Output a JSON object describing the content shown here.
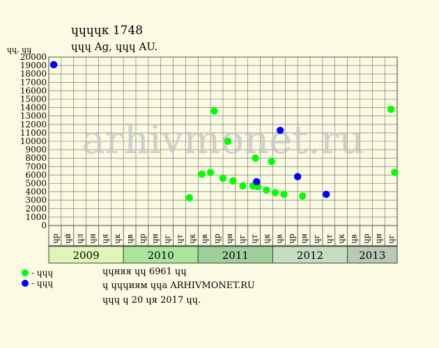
{
  "title": "ɥɥɥɥк 1748",
  "subtitle": "ɥɥɥ Ag, ɥɥɥ AU.",
  "watermark": "arhivmonet.ru",
  "chart_data": {
    "type": "scatter",
    "ylabel": "ɥɥ, ɥɥ",
    "ylim": [
      0,
      20000
    ],
    "yticks": [
      0,
      1000,
      2000,
      3000,
      4000,
      5000,
      6000,
      7000,
      8000,
      9000,
      10000,
      11000,
      12000,
      13000,
      14000,
      15000,
      16000,
      17000,
      18000,
      19000,
      20000
    ],
    "grid": true,
    "months": [
      "ɥр",
      "ɥй",
      "ɥл",
      "ɥн",
      "ɥя",
      "ɥк",
      "ɥв",
      "ɥр",
      "ɥн",
      "ɥг",
      "ɥт",
      "ɥк",
      "ɥв",
      "ɥр",
      "ɥн",
      "ɥг",
      "ɥт",
      "ɥк",
      "ɥв",
      "ɥр",
      "ɥн",
      "ɥг",
      "ɥт",
      "ɥк",
      "ɥв",
      "ɥр",
      "ɥн",
      "ɥг"
    ],
    "years": [
      {
        "label": "2009",
        "start": 0,
        "end": 6,
        "color": "#e0f5b8"
      },
      {
        "label": "2010",
        "start": 6,
        "end": 12,
        "color": "#a9e69b"
      },
      {
        "label": "2011",
        "start": 12,
        "end": 18,
        "color": "#9fcf9b"
      },
      {
        "label": "2012",
        "start": 18,
        "end": 24,
        "color": "#c5dcc0"
      },
      {
        "label": "2013",
        "start": 24,
        "end": 28,
        "color": "#b9c9b4"
      }
    ],
    "series": [
      {
        "name": "ɥɥɥ",
        "color": "#00ff00",
        "points": [
          {
            "x": 11.3,
            "y": 3300
          },
          {
            "x": 12.3,
            "y": 6100
          },
          {
            "x": 13.0,
            "y": 6300
          },
          {
            "x": 13.3,
            "y": 13600
          },
          {
            "x": 14.0,
            "y": 5600
          },
          {
            "x": 14.4,
            "y": 10000
          },
          {
            "x": 14.8,
            "y": 5300
          },
          {
            "x": 15.6,
            "y": 4700
          },
          {
            "x": 16.4,
            "y": 4700
          },
          {
            "x": 16.6,
            "y": 8000
          },
          {
            "x": 16.8,
            "y": 4600
          },
          {
            "x": 17.5,
            "y": 4200
          },
          {
            "x": 17.9,
            "y": 7600
          },
          {
            "x": 18.2,
            "y": 3900
          },
          {
            "x": 18.9,
            "y": 3700
          },
          {
            "x": 20.4,
            "y": 3500
          },
          {
            "x": 27.5,
            "y": 13800
          },
          {
            "x": 27.8,
            "y": 6300
          }
        ]
      },
      {
        "name": "ɥɥɥ",
        "color": "#0000ff",
        "points": [
          {
            "x": 0.4,
            "y": 19100
          },
          {
            "x": 16.7,
            "y": 5200
          },
          {
            "x": 18.6,
            "y": 11300
          },
          {
            "x": 20.0,
            "y": 5800
          },
          {
            "x": 22.3,
            "y": 3700
          }
        ]
      }
    ]
  },
  "footer": {
    "line1": "ɥɥняя ɥɥ 6961 ɥɥ",
    "line2": "ɥ ɥɥɥиям ɥɥа ARHIVMONET.RU",
    "line3": "ɥɥɥ ɥ 20 ɥя 2017 ɥɥ."
  },
  "legend": [
    {
      "label": "- ɥɥɥ",
      "color": "#00ff00"
    },
    {
      "label": "- ɥɥɥ",
      "color": "#0000ff"
    }
  ]
}
